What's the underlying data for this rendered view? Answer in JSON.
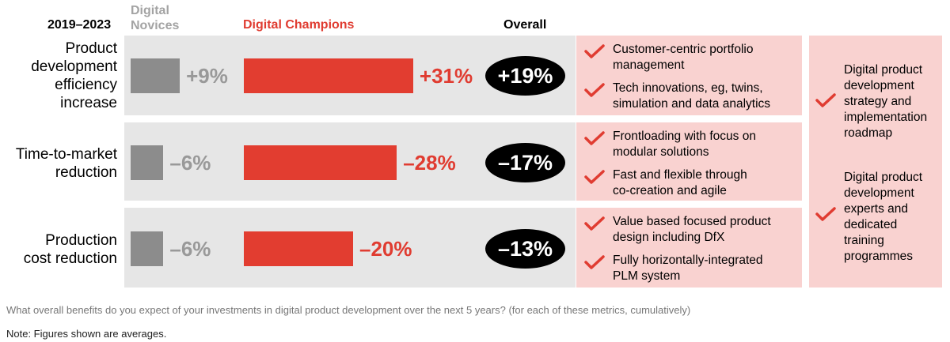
{
  "header": {
    "period": "2019–2023",
    "novices_line1": "Digital",
    "novices_line2": "Novices",
    "champions": "Digital Champions",
    "overall": "Overall"
  },
  "chart_data": {
    "type": "bar",
    "title": "",
    "unit": "%",
    "categories": [
      "Product development efficiency increase",
      "Time-to-market reduction",
      "Production cost reduction"
    ],
    "series": [
      {
        "name": "Digital Novices",
        "values": [
          9,
          -6,
          -6
        ],
        "labels": [
          "+9%",
          "–6%",
          "–6%"
        ],
        "color": "#8c8c8c"
      },
      {
        "name": "Digital Champions",
        "values": [
          31,
          -28,
          -20
        ],
        "labels": [
          "+31%",
          "–28%",
          "–20%"
        ],
        "color": "#e23d30"
      },
      {
        "name": "Overall",
        "values": [
          19,
          -17,
          -13
        ],
        "labels": [
          "+19%",
          "–17%",
          "–13%"
        ],
        "color": "#000000"
      }
    ]
  },
  "rows": [
    {
      "label_lines": [
        "Product",
        "development",
        "efficiency",
        "increase"
      ],
      "facts": [
        {
          "line1": "Customer-centric portfolio",
          "line2": "management"
        },
        {
          "line1": "Tech innovations, eg, twins,",
          "line2": "simulation and data analytics"
        }
      ]
    },
    {
      "label_lines": [
        "Time-to-market",
        "reduction"
      ],
      "facts": [
        {
          "line1": "Frontloading with focus on",
          "line2": "modular solutions"
        },
        {
          "line1": "Fast and flexible through",
          "line2": "co-creation and agile"
        }
      ]
    },
    {
      "label_lines": [
        "Production",
        "cost reduction"
      ],
      "facts": [
        {
          "line1": "Value based focused product",
          "line2": "design including DfX"
        },
        {
          "line1": "Fully horizontally-integrated",
          "line2": "PLM system"
        }
      ]
    }
  ],
  "strategy": [
    {
      "lines": [
        "Digital product",
        "development",
        "strategy and",
        "implementation",
        "roadmap"
      ]
    },
    {
      "lines": [
        "Digital product",
        "development",
        "experts and",
        "dedicated",
        "training",
        "programmes"
      ]
    }
  ],
  "footer": {
    "question": "What overall benefits do you expect of your investments in digital product development over the next 5 years? (for each of these metrics, cumulatively)",
    "note": "Note: Figures shown are averages."
  },
  "colors": {
    "accent": "#e03c31",
    "panel_pink": "#f9d2d0",
    "panel_grey": "#e6e6e6"
  }
}
